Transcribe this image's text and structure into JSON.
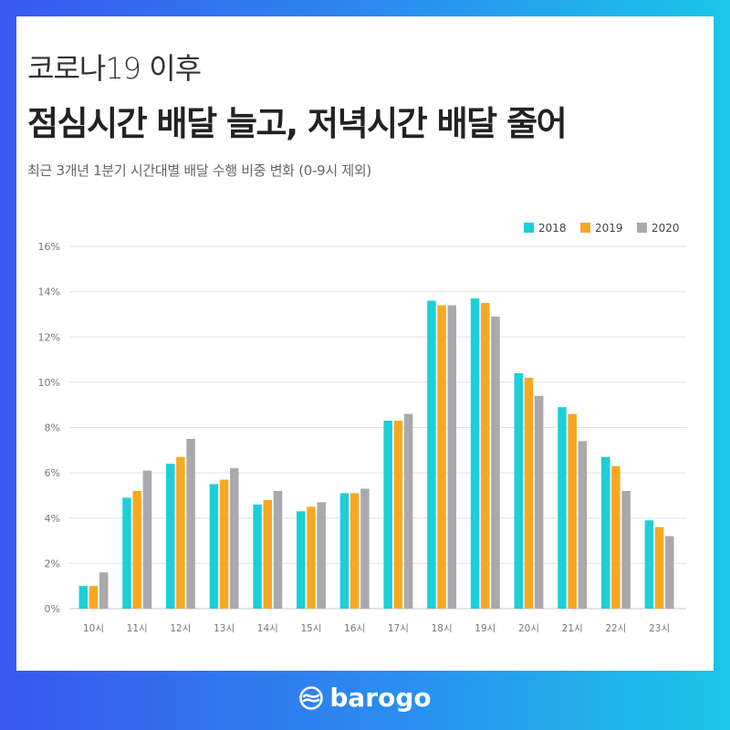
{
  "header": {
    "subtitle": "코로나19 이후",
    "headline_parts": [
      "점심시간 배달 ",
      "늘고",
      ", 저녁시간 배달 ",
      "줄어"
    ],
    "description": "최근 3개년 1분기 시간대별 배달 수행 비중 변화 (0-9시 제외)"
  },
  "brand": {
    "logo_text": "barogo"
  },
  "colors": {
    "2018": "#1dcfd8",
    "2019": "#f7a823",
    "2020": "#a9a9ad"
  },
  "chart_data": {
    "type": "bar",
    "categories": [
      "10시",
      "11시",
      "12시",
      "13시",
      "14시",
      "15시",
      "16시",
      "17시",
      "18시",
      "19시",
      "20시",
      "21시",
      "22시",
      "23시"
    ],
    "series": [
      {
        "name": "2018",
        "values": [
          1.0,
          4.9,
          6.4,
          5.5,
          4.6,
          4.3,
          5.1,
          8.3,
          13.6,
          13.7,
          10.4,
          8.9,
          6.7,
          3.9
        ]
      },
      {
        "name": "2019",
        "values": [
          1.0,
          5.2,
          6.7,
          5.7,
          4.8,
          4.5,
          5.1,
          8.3,
          13.4,
          13.5,
          10.2,
          8.6,
          6.3,
          3.6
        ]
      },
      {
        "name": "2020",
        "values": [
          1.6,
          6.1,
          7.5,
          6.2,
          5.2,
          4.7,
          5.3,
          8.6,
          13.4,
          12.9,
          9.4,
          7.4,
          5.2,
          3.2
        ]
      }
    ],
    "y_ticks": [
      "0%",
      "2%",
      "4%",
      "6%",
      "8%",
      "10%",
      "12%",
      "14%",
      "16%"
    ],
    "ylim": [
      0,
      16
    ],
    "grid": true,
    "legend_position": "top-right"
  }
}
